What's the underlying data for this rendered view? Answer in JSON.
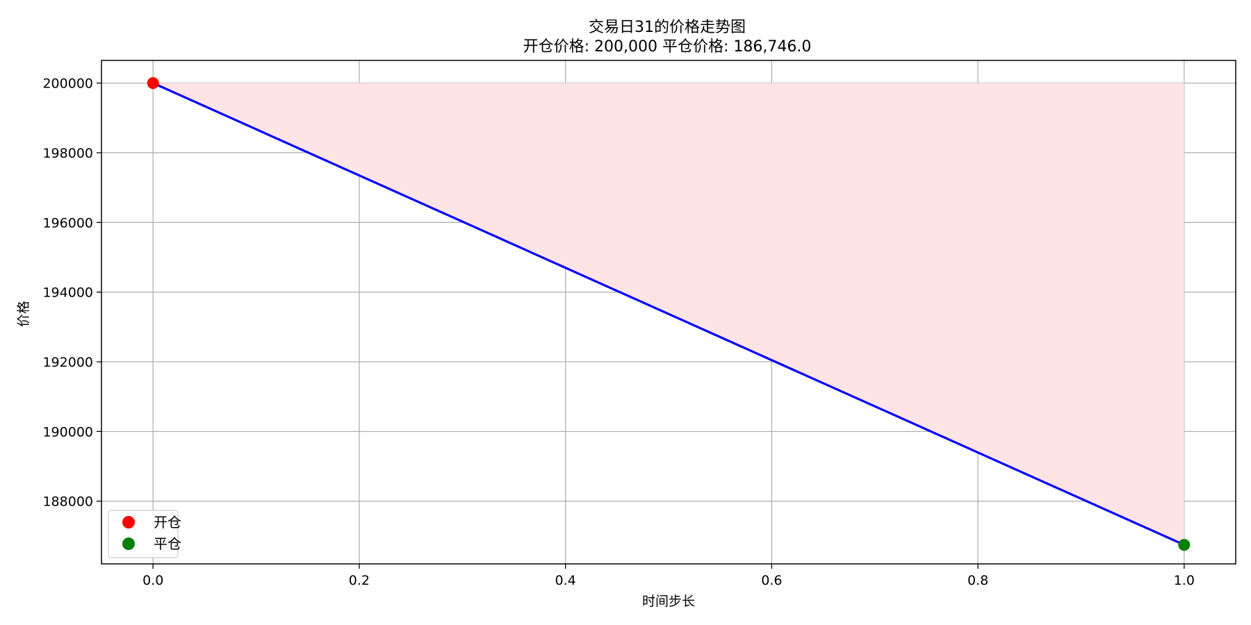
{
  "chart_data": {
    "type": "line",
    "title": "交易日31的价格走势图",
    "subtitle": "开仓价格: 200,000 平仓价格: 186,746.0",
    "xlabel": "时间步长",
    "ylabel": "价格",
    "xlim": [
      -0.05,
      1.05
    ],
    "ylim": [
      186200,
      200650
    ],
    "x_ticks": [
      0.0,
      0.2,
      0.4,
      0.6,
      0.8,
      1.0
    ],
    "x_tick_labels": [
      "0.0",
      "0.2",
      "0.4",
      "0.6",
      "0.8",
      "1.0"
    ],
    "y_ticks": [
      188000,
      190000,
      192000,
      194000,
      196000,
      198000,
      200000
    ],
    "y_tick_labels": [
      "188000",
      "190000",
      "192000",
      "194000",
      "196000",
      "198000",
      "200000"
    ],
    "grid": true,
    "legend_position": "lower-left",
    "series": [
      {
        "x": [
          0,
          1
        ],
        "y": [
          200000,
          186746.0
        ],
        "color": "#0000ff"
      }
    ],
    "fill_between": {
      "x": [
        0,
        1
      ],
      "y_lower": [
        200000,
        186746.0
      ],
      "y_upper": [
        200000,
        200000
      ],
      "color": "#ffe4e6"
    },
    "points": [
      {
        "name": "开仓",
        "x": 0,
        "y": 200000,
        "color": "#ff0000"
      },
      {
        "name": "平仓",
        "x": 1,
        "y": 186746.0,
        "color": "#008000"
      }
    ]
  }
}
